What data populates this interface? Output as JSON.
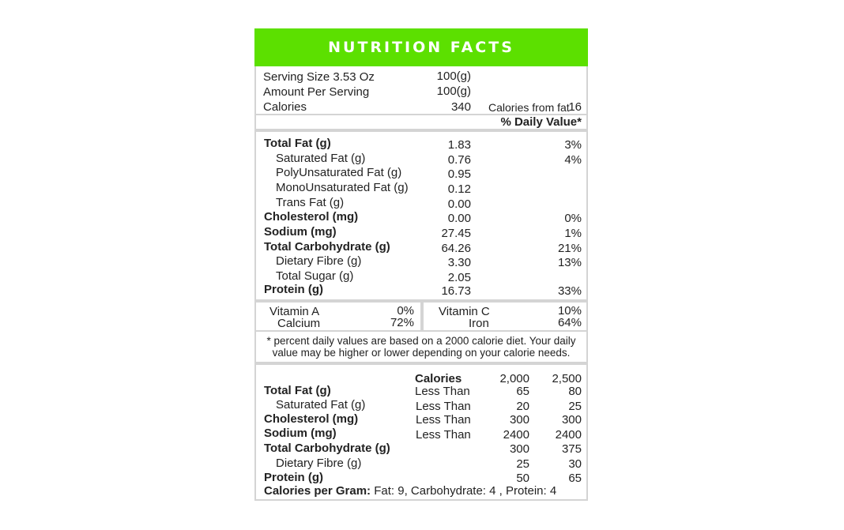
{
  "title": "NUTRITION FACTS",
  "serving": {
    "serving_size_label": "Serving Size 3.53 Oz",
    "serving_size_value": "100(g)",
    "amount_label": "Amount Per Serving",
    "amount_value": "100(g)",
    "calories_label": "Calories",
    "calories_value": "340",
    "calories_fat_label": "Calories from fat",
    "calories_fat_value": "16"
  },
  "daily_value_header": "% Daily Value*",
  "nutrients": [
    {
      "name": "Total Fat (g)",
      "amount": "1.83",
      "dv": "3%"
    },
    {
      "name": "Saturated Fat (g)",
      "amount": "0.76",
      "dv": "4%"
    },
    {
      "name": "PolyUnsaturated Fat (g)",
      "amount": "0.95",
      "dv": ""
    },
    {
      "name": "MonoUnsaturated Fat (g)",
      "amount": "0.12",
      "dv": ""
    },
    {
      "name": "Trans Fat (g)",
      "amount": "0.00",
      "dv": ""
    },
    {
      "name": "Cholesterol (mg)",
      "amount": "0.00",
      "dv": "0%"
    },
    {
      "name": "Sodium (mg)",
      "amount": "27.45",
      "dv": "1%"
    },
    {
      "name": "Total Carbohydrate (g)",
      "amount": "64.26",
      "dv": "21%"
    },
    {
      "name": "Dietary Fibre (g)",
      "amount": "3.30",
      "dv": "13%"
    },
    {
      "name": "Total Sugar (g)",
      "amount": "2.05",
      "dv": ""
    },
    {
      "name": "Protein (g)",
      "amount": "16.73",
      "dv": "33%"
    }
  ],
  "vitamins": [
    {
      "name": "Vitamin A",
      "value": "0%"
    },
    {
      "name": "Calcium",
      "value": "72%"
    },
    {
      "name": "Vitamin C",
      "value": "10%"
    },
    {
      "name": "Iron",
      "value": "64%"
    }
  ],
  "footnote_line1": "* percent daily values are based on a  2000 calorie diet. Your daily",
  "footnote_line2": "value may be higher or lower depending on your calorie needs.",
  "reference": {
    "calories_header": "Calories",
    "col1_header": "2,000",
    "col2_header": "2,500",
    "rows": [
      {
        "name": "Total Fat (g)",
        "qualifier": "Less Than",
        "v1": "65",
        "v2": "80"
      },
      {
        "name": "Saturated Fat (g)",
        "qualifier": "Less Than",
        "v1": "20",
        "v2": "25"
      },
      {
        "name": "Cholesterol (mg)",
        "qualifier": "Less Than",
        "v1": "300",
        "v2": "300"
      },
      {
        "name": "Sodium (mg)",
        "qualifier": "Less Than",
        "v1": "2400",
        "v2": "2400"
      },
      {
        "name": "Total Carbohydrate (g)",
        "qualifier": "",
        "v1": "300",
        "v2": "375"
      },
      {
        "name": "Dietary Fibre (g)",
        "qualifier": "",
        "v1": "25",
        "v2": "30"
      },
      {
        "name": "Protein (g)",
        "qualifier": "",
        "v1": "50",
        "v2": "65"
      }
    ]
  },
  "calories_per_gram_label": "Calories per Gram:",
  "calories_per_gram_value": "Fat: 9, Carbohydrate: 4 , Protein: 4"
}
